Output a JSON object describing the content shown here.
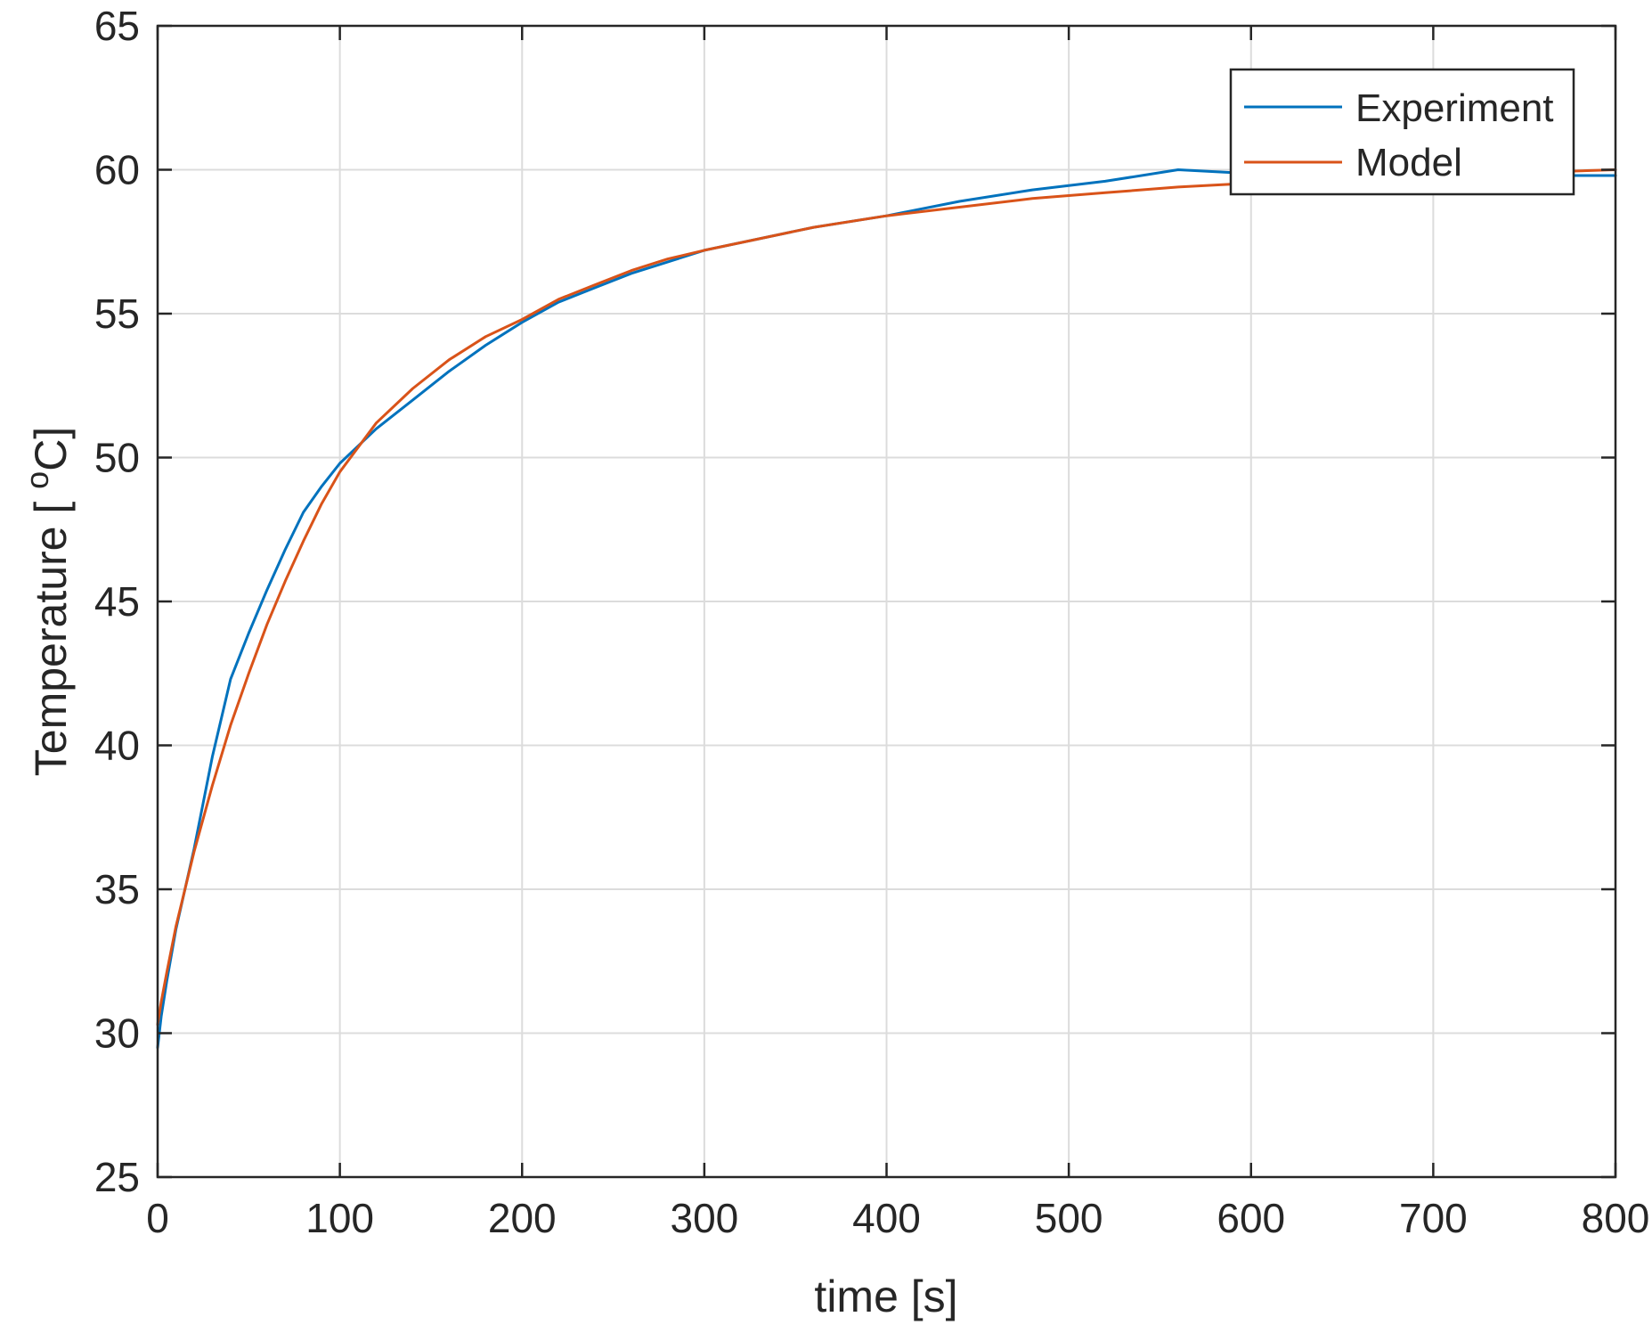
{
  "chart_data": {
    "type": "line",
    "title": "",
    "xlabel": "time [s]",
    "ylabel": "Temperature [°C]",
    "ylabel_parts": {
      "main": "Temperature [ ",
      "sup": "o",
      "unit": "C]"
    },
    "xlim": [
      0,
      800
    ],
    "ylim": [
      25,
      65
    ],
    "xticks": [
      0,
      100,
      200,
      300,
      400,
      500,
      600,
      700,
      800
    ],
    "yticks": [
      25,
      30,
      35,
      40,
      45,
      50,
      55,
      60,
      65
    ],
    "xtick_labels": [
      "0",
      "100",
      "200",
      "300",
      "400",
      "500",
      "600",
      "700",
      "800"
    ],
    "ytick_labels": [
      "25",
      "30",
      "35",
      "40",
      "45",
      "50",
      "55",
      "60",
      "65"
    ],
    "grid": true,
    "legend_position": "top-right",
    "series": [
      {
        "name": "Experiment",
        "color": "#0072BD",
        "x": [
          0,
          2,
          5,
          10,
          20,
          30,
          40,
          50,
          60,
          70,
          80,
          90,
          100,
          120,
          140,
          160,
          180,
          200,
          220,
          240,
          260,
          280,
          300,
          330,
          360,
          400,
          440,
          480,
          520,
          560,
          590,
          620,
          650,
          700,
          750,
          800
        ],
        "y": [
          29.5,
          30.6,
          31.8,
          33.6,
          36.4,
          39.6,
          42.3,
          43.9,
          45.4,
          46.8,
          48.1,
          49.0,
          49.8,
          51.0,
          52.0,
          53.0,
          53.9,
          54.7,
          55.4,
          55.9,
          56.4,
          56.8,
          57.2,
          57.6,
          58.0,
          58.4,
          58.9,
          59.3,
          59.6,
          60.0,
          59.9,
          59.8,
          59.8,
          59.8,
          59.8,
          59.8
        ]
      },
      {
        "name": "Model",
        "color": "#D95319",
        "x": [
          0,
          2,
          5,
          10,
          20,
          30,
          40,
          50,
          60,
          70,
          80,
          90,
          100,
          120,
          140,
          160,
          180,
          200,
          220,
          240,
          260,
          280,
          300,
          330,
          360,
          400,
          440,
          480,
          520,
          560,
          590,
          620,
          650,
          700,
          750,
          800
        ],
        "y": [
          30.3,
          31.1,
          32.1,
          33.7,
          36.3,
          38.6,
          40.7,
          42.5,
          44.2,
          45.7,
          47.1,
          48.4,
          49.5,
          51.2,
          52.4,
          53.4,
          54.2,
          54.8,
          55.5,
          56.0,
          56.5,
          56.9,
          57.2,
          57.6,
          58.0,
          58.4,
          58.7,
          59.0,
          59.2,
          59.4,
          59.5,
          59.6,
          59.7,
          59.8,
          59.9,
          60.0
        ]
      }
    ]
  }
}
